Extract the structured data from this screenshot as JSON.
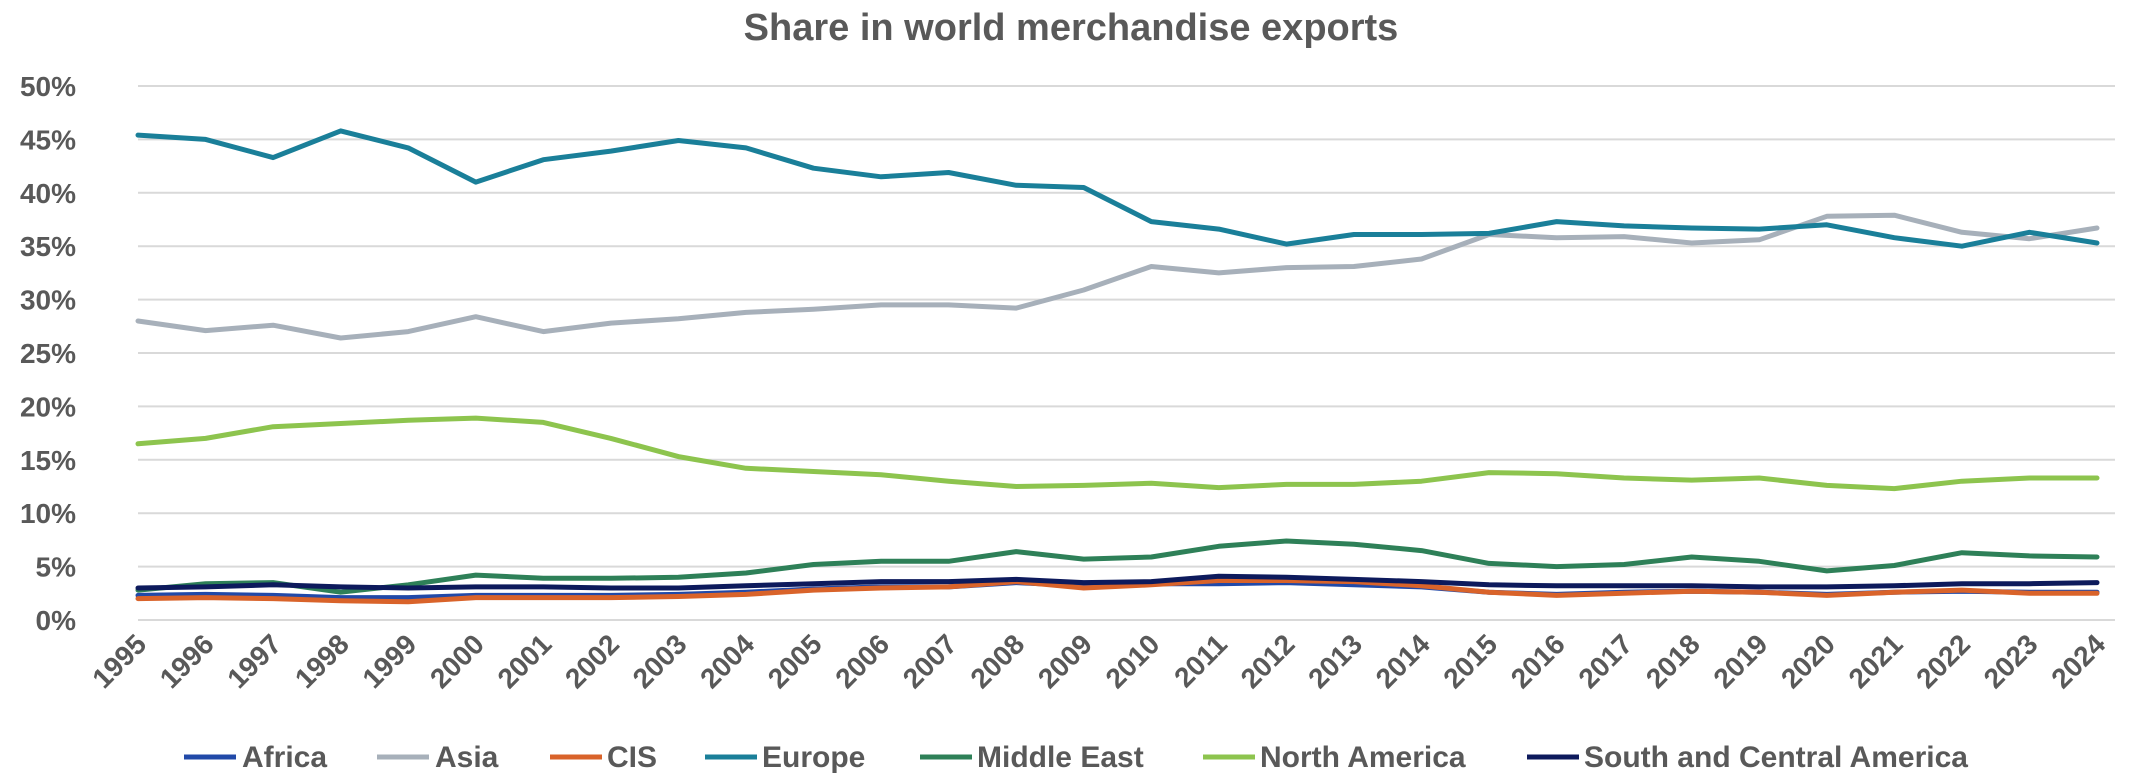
{
  "chart_data": {
    "type": "line",
    "title": "Share in world merchandise exports",
    "xlabel": "",
    "ylabel": "",
    "x": [
      "1995",
      "1996",
      "1997",
      "1998",
      "1999",
      "2000",
      "2001",
      "2002",
      "2003",
      "2004",
      "2005",
      "2006",
      "2007",
      "2008",
      "2009",
      "2010",
      "2011",
      "2012",
      "2013",
      "2014",
      "2015",
      "2016",
      "2017",
      "2018",
      "2019",
      "2020",
      "2021",
      "2022",
      "2023",
      "2024"
    ],
    "ylim": [
      0,
      50
    ],
    "yticks": [
      0,
      5,
      10,
      15,
      20,
      25,
      30,
      35,
      40,
      45,
      50
    ],
    "ytick_labels": [
      "0%",
      "5%",
      "10%",
      "15%",
      "20%",
      "25%",
      "30%",
      "35%",
      "40%",
      "45%",
      "50%"
    ],
    "grid": true,
    "legend_position": "bottom",
    "series": [
      {
        "name": "Africa",
        "color": "#2149a8",
        "values": [
          2.3,
          2.4,
          2.3,
          2.1,
          2.1,
          2.3,
          2.3,
          2.3,
          2.4,
          2.6,
          2.9,
          3.1,
          3.1,
          3.5,
          3.2,
          3.4,
          3.4,
          3.5,
          3.3,
          3.1,
          2.6,
          2.4,
          2.6,
          2.7,
          2.6,
          2.4,
          2.6,
          2.7,
          2.6,
          2.6
        ]
      },
      {
        "name": "Asia",
        "color": "#a7b0ba",
        "values": [
          28.0,
          27.1,
          27.6,
          26.4,
          27.0,
          28.4,
          27.0,
          27.8,
          28.2,
          28.8,
          29.1,
          29.5,
          29.5,
          29.2,
          30.9,
          33.1,
          32.5,
          33.0,
          33.1,
          33.8,
          36.1,
          35.8,
          35.9,
          35.3,
          35.6,
          37.8,
          37.9,
          36.3,
          35.7,
          36.7
        ]
      },
      {
        "name": "CIS",
        "color": "#d9632a",
        "values": [
          2.0,
          2.1,
          2.0,
          1.8,
          1.7,
          2.1,
          2.1,
          2.1,
          2.2,
          2.4,
          2.8,
          3.0,
          3.1,
          3.6,
          3.0,
          3.3,
          3.7,
          3.7,
          3.6,
          3.2,
          2.6,
          2.3,
          2.5,
          2.7,
          2.6,
          2.3,
          2.6,
          2.8,
          2.5,
          2.5
        ]
      },
      {
        "name": "Europe",
        "color": "#1a7f99",
        "values": [
          45.4,
          45.0,
          43.3,
          45.8,
          44.2,
          41.0,
          43.1,
          43.9,
          44.9,
          44.2,
          42.3,
          41.5,
          41.9,
          40.7,
          40.5,
          37.3,
          36.6,
          35.2,
          36.1,
          36.1,
          36.2,
          37.3,
          36.9,
          36.7,
          36.6,
          37.0,
          35.8,
          35.0,
          36.3,
          35.3
        ]
      },
      {
        "name": "Middle East",
        "color": "#2e8058",
        "values": [
          2.8,
          3.4,
          3.5,
          2.6,
          3.3,
          4.2,
          3.9,
          3.9,
          4.0,
          4.4,
          5.2,
          5.5,
          5.5,
          6.4,
          5.7,
          5.9,
          6.9,
          7.4,
          7.1,
          6.5,
          5.3,
          5.0,
          5.2,
          5.9,
          5.5,
          4.6,
          5.1,
          6.3,
          6.0,
          5.9
        ]
      },
      {
        "name": "North America",
        "color": "#8dc44e",
        "values": [
          16.5,
          17.0,
          18.1,
          18.4,
          18.7,
          18.9,
          18.5,
          17.0,
          15.3,
          14.2,
          13.9,
          13.6,
          13.0,
          12.5,
          12.6,
          12.8,
          12.4,
          12.7,
          12.7,
          13.0,
          13.8,
          13.7,
          13.3,
          13.1,
          13.3,
          12.6,
          12.3,
          13.0,
          13.3,
          13.3
        ]
      },
      {
        "name": "South and Central America",
        "color": "#0d1a5c",
        "values": [
          3.0,
          3.1,
          3.3,
          3.1,
          3.0,
          3.1,
          3.1,
          3.0,
          3.0,
          3.2,
          3.4,
          3.6,
          3.6,
          3.8,
          3.5,
          3.6,
          4.1,
          4.0,
          3.8,
          3.6,
          3.3,
          3.2,
          3.2,
          3.2,
          3.1,
          3.1,
          3.2,
          3.4,
          3.4,
          3.5
        ]
      }
    ]
  }
}
